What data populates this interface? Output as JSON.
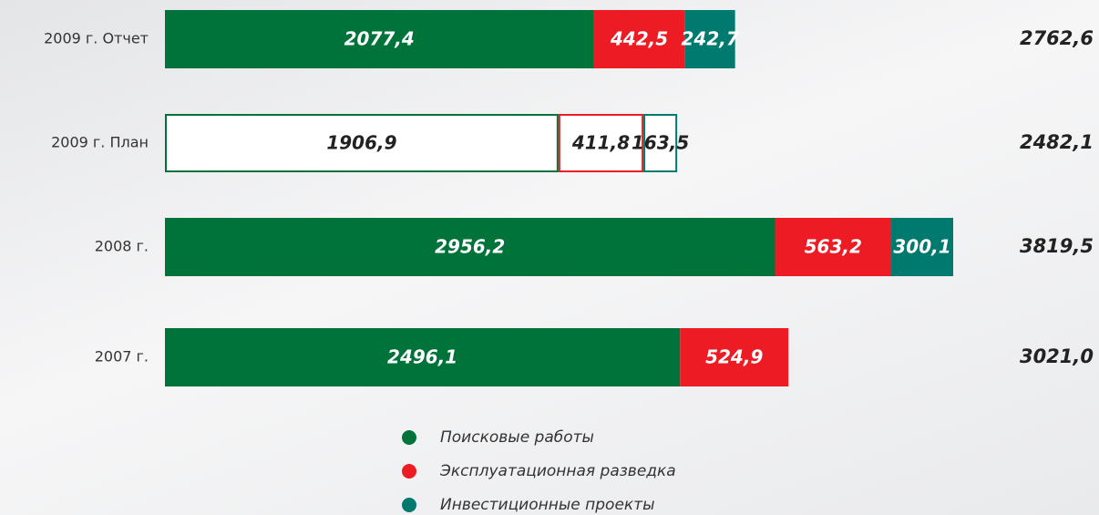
{
  "chart_data": {
    "type": "stacked-bar-horizontal",
    "categories": [
      "2009 г. Отчет",
      "2009 г. План",
      "2008 г.",
      "2007 г."
    ],
    "outlined": [
      false,
      true,
      false,
      false
    ],
    "series": [
      {
        "name": "Поисковые работы",
        "color": "#00733a",
        "values": [
          2077.4,
          1906.9,
          2956.2,
          2496.1
        ],
        "value_labels": [
          "2077,4",
          "1906,9",
          "2956,2",
          "2496,1"
        ]
      },
      {
        "name": "Эксплуатационная разведка",
        "color": "#ed1c24",
        "values": [
          442.5,
          411.8,
          563.2,
          524.9
        ],
        "value_labels": [
          "442,5",
          "411,8",
          "563,2",
          "524,9"
        ]
      },
      {
        "name": "Инвестиционные проекты",
        "color": "#007a6e",
        "values": [
          242.7,
          163.5,
          300.1,
          null
        ],
        "value_labels": [
          "242,7",
          "163,5",
          "300,1",
          null
        ]
      }
    ],
    "totals": [
      2762.6,
      2482.1,
      3819.5,
      3021.0
    ],
    "total_labels": [
      "2762,6",
      "2482,1",
      "3819,5",
      "3021,0"
    ]
  }
}
